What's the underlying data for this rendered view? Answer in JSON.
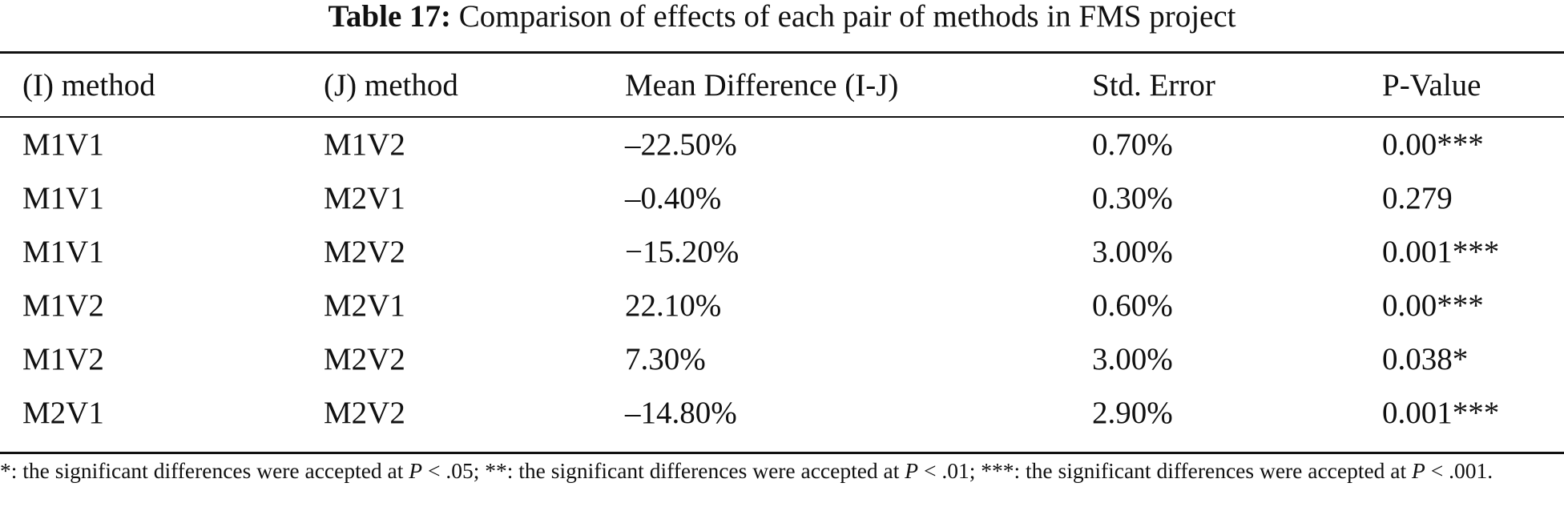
{
  "caption": {
    "label": "Table 17:",
    "text": "Comparison of effects of each pair of methods in FMS project"
  },
  "table": {
    "headers": [
      "(I) method",
      "(J) method",
      "Mean Difference (I-J)",
      "Std. Error",
      "P-Value"
    ],
    "rows": [
      [
        "M1V1",
        "M1V2",
        "–22.50%",
        "0.70%",
        "0.00***"
      ],
      [
        "M1V1",
        "M2V1",
        "–0.40%",
        "0.30%",
        "0.279"
      ],
      [
        "M1V1",
        "M2V2",
        "−15.20%",
        "3.00%",
        "0.001***"
      ],
      [
        "M1V2",
        "M2V1",
        "22.10%",
        "0.60%",
        "0.00***"
      ],
      [
        "M1V2",
        "M2V2",
        "7.30%",
        "3.00%",
        "0.038*"
      ],
      [
        "M2V1",
        "M2V2",
        "–14.80%",
        "2.90%",
        "0.001***"
      ]
    ]
  },
  "footnote": {
    "p1_prefix": "*: the significant differences were accepted at ",
    "p1_var": "P",
    "p1_value": " < .05; ",
    "p2_prefix": "**: the significant differences were accepted at ",
    "p2_var": "P",
    "p2_value": " < .01; ",
    "p3_prefix": "***: the significant differences were accepted at ",
    "p3_var": "P",
    "p3_value": " < .001."
  }
}
